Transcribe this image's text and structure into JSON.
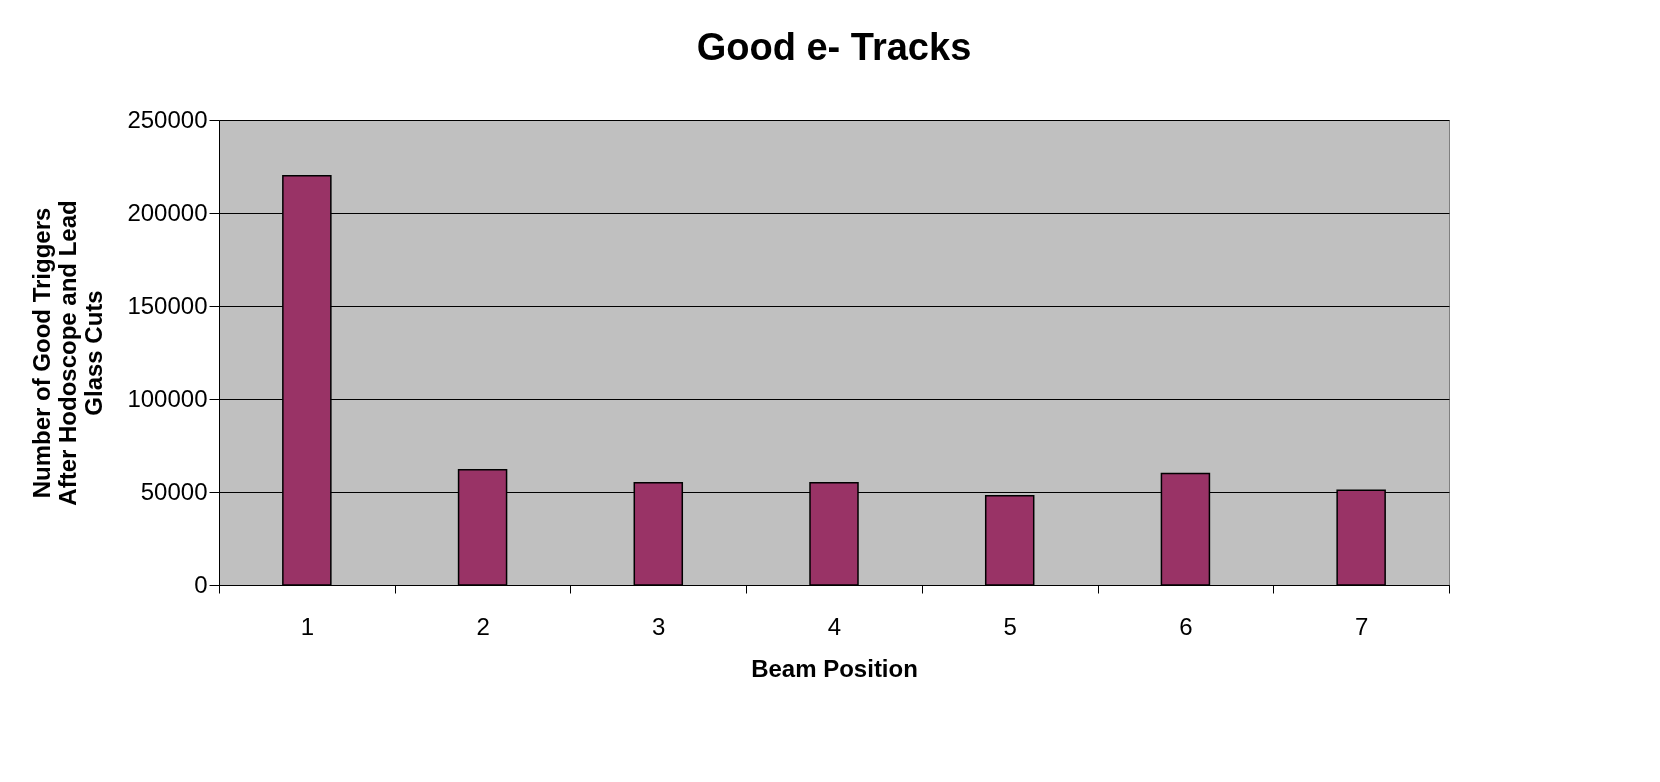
{
  "chart_data": {
    "type": "bar",
    "title": "Good e-  Tracks",
    "xlabel": "Beam Position",
    "ylabel": "Number of Good Triggers\nAfter Hodoscope and Lead\nGlass Cuts",
    "categories": [
      "1",
      "2",
      "3",
      "4",
      "5",
      "6",
      "7"
    ],
    "values": [
      220000,
      62000,
      55000,
      55000,
      48000,
      60000,
      51000
    ],
    "color": "#993366",
    "ylim": [
      0,
      250000
    ],
    "yticks": [
      0,
      50000,
      100000,
      150000,
      200000,
      250000
    ],
    "grid": "y"
  }
}
